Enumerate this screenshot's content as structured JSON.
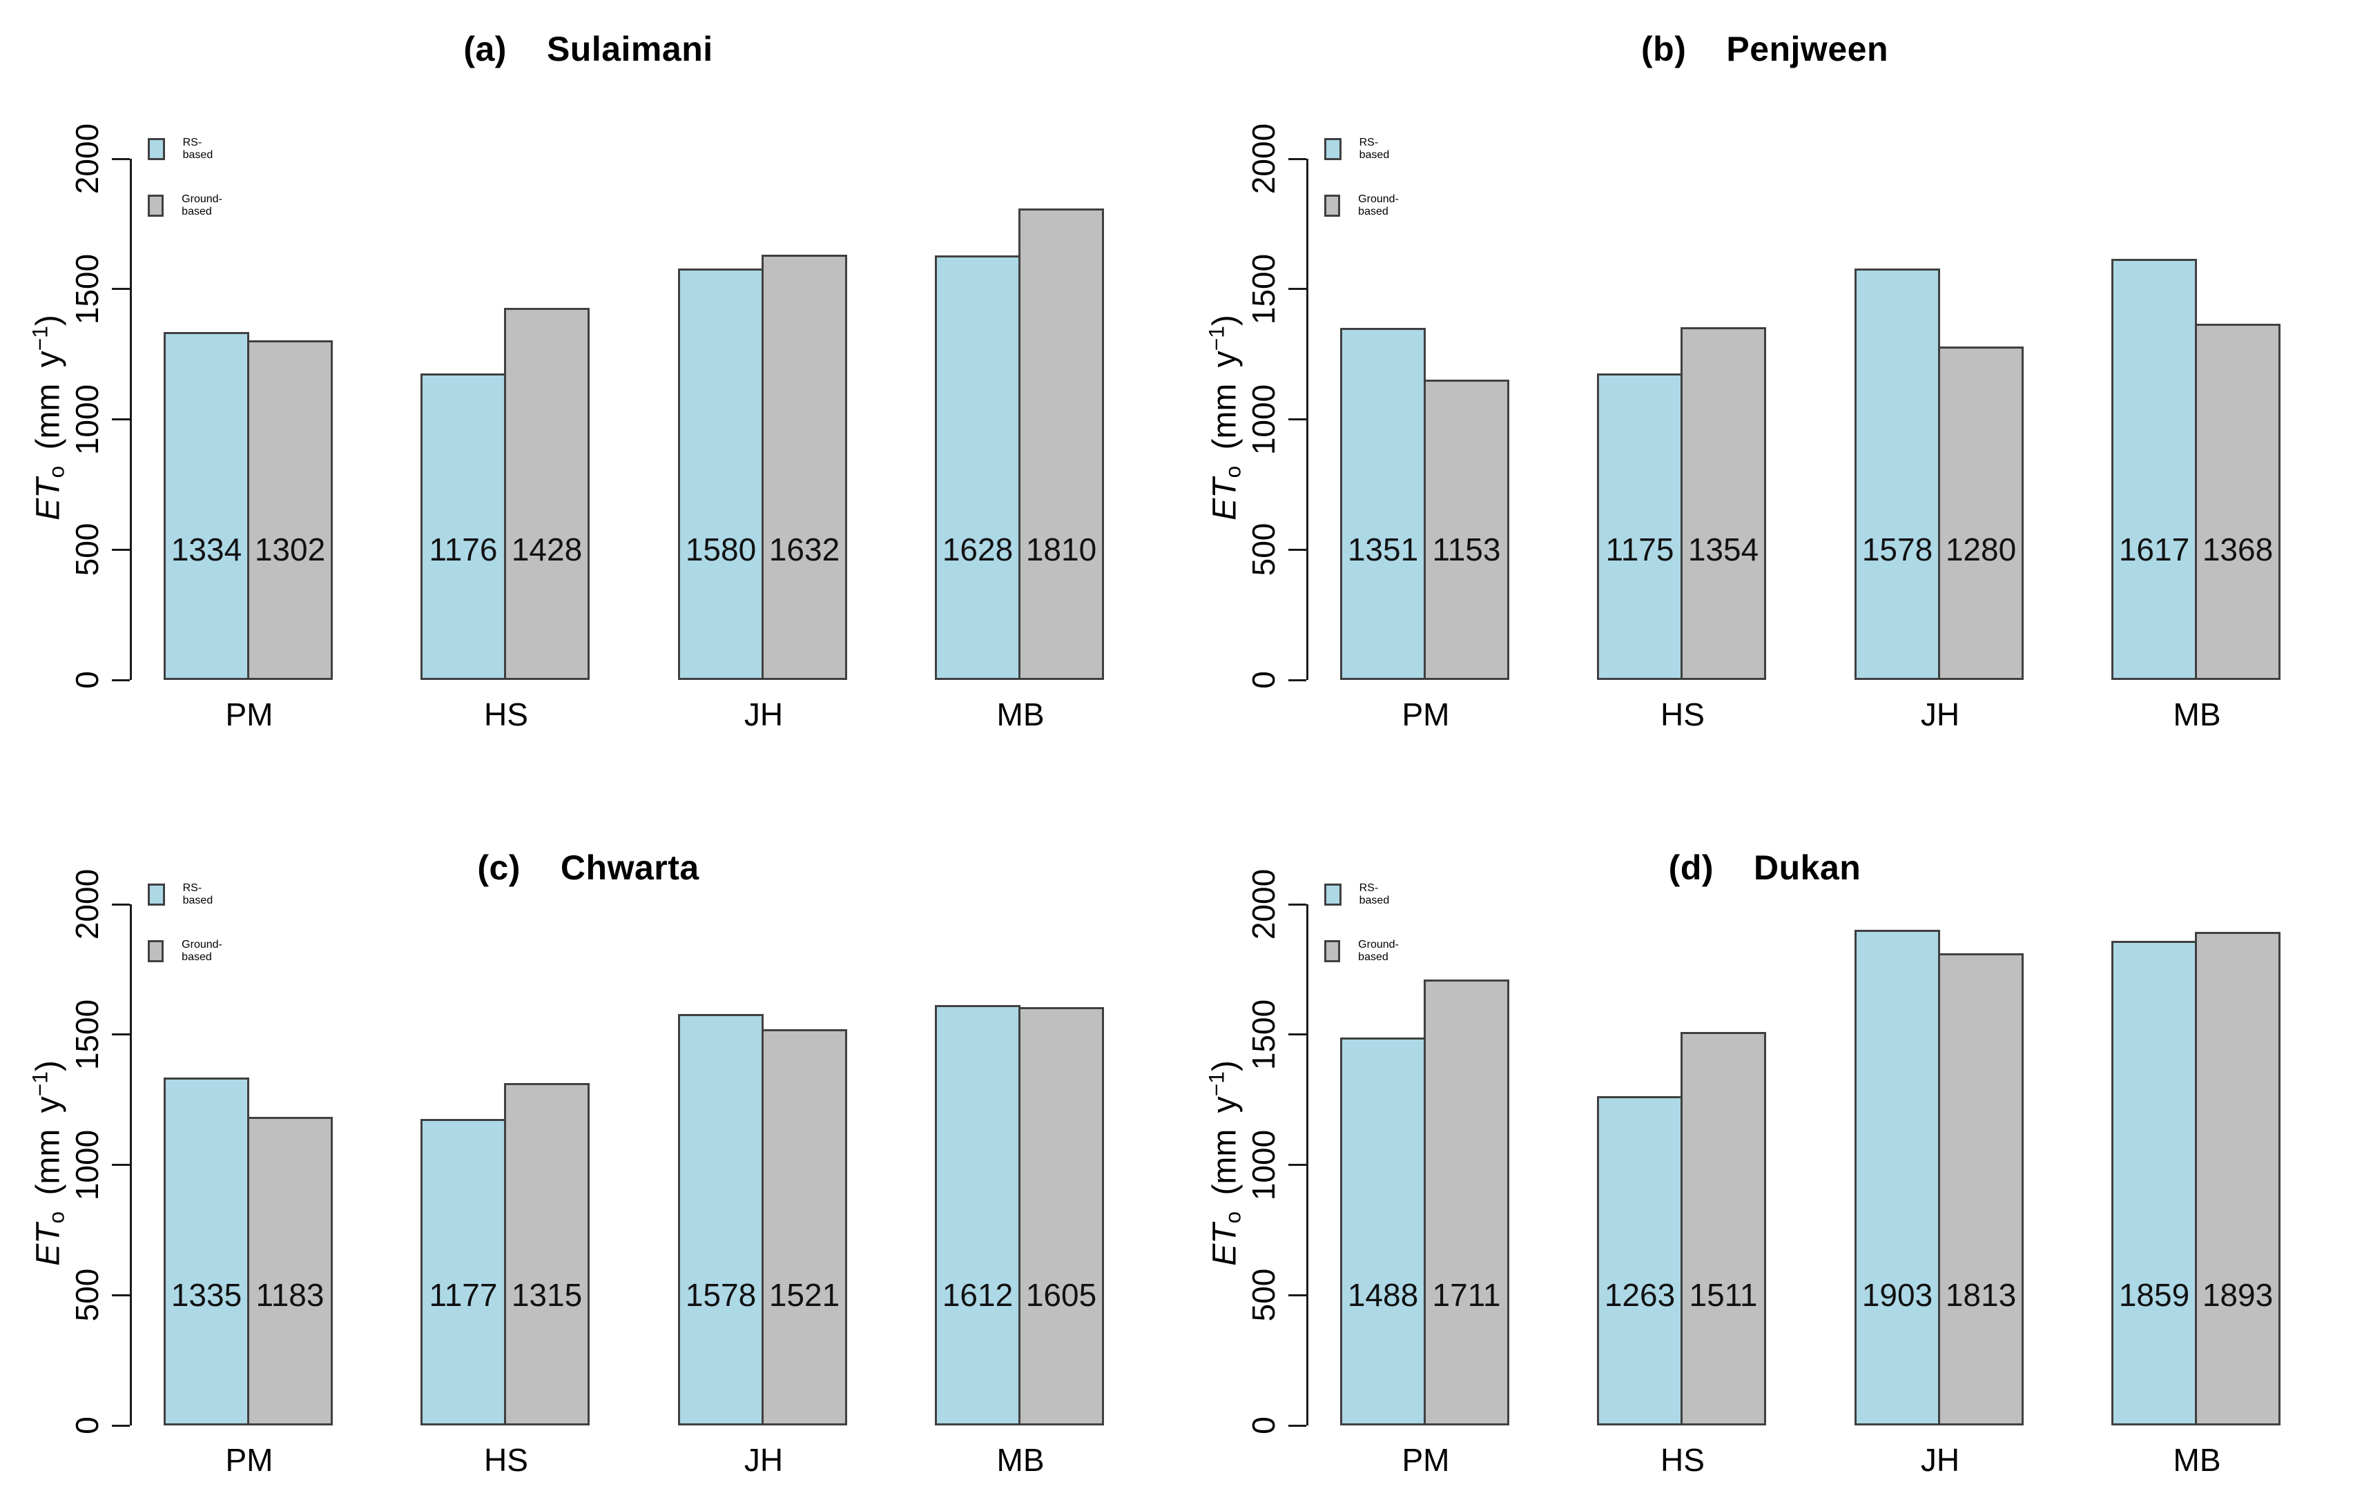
{
  "figure": {
    "colors": {
      "rs_fill": "#ADD8E6",
      "ground_fill": "#BFBFBF",
      "bar_border": "#404040",
      "axis": "#1A1A1A",
      "text": "#000000"
    },
    "legend": {
      "position": "top-left",
      "items": [
        {
          "label": "RS-based",
          "color": "#ADD8E6"
        },
        {
          "label": "Ground-based",
          "color": "#BFBFBF"
        }
      ]
    },
    "y_axis": {
      "ticks": [
        "0",
        "500",
        "1000",
        "1500",
        "2000"
      ],
      "tick_values": [
        0,
        500,
        1000,
        1500,
        2000
      ],
      "label": {
        "var": "ET",
        "sub": "o",
        "rest": " (mm y",
        "exp": "−1",
        "end": ")"
      }
    }
  },
  "chart_data": [
    {
      "type": "bar",
      "panel_label": "(a)",
      "title": "Sulaimani",
      "categories": [
        "PM",
        "HS",
        "JH",
        "MB"
      ],
      "series": [
        {
          "name": "RS-based",
          "values": [
            1334,
            1176,
            1580,
            1628
          ]
        },
        {
          "name": "Ground-based",
          "values": [
            1302,
            1428,
            1632,
            1810
          ]
        }
      ],
      "bar_value_labels": [
        [
          "1334",
          "1302"
        ],
        [
          "1176",
          "1428"
        ],
        [
          "1580",
          "1632"
        ],
        [
          "1628",
          "1810"
        ]
      ],
      "xlabel": "",
      "ylabel": "ETo (mm y-1)",
      "ylim": [
        0,
        2000
      ],
      "grid": false,
      "legend_position": "top-left"
    },
    {
      "type": "bar",
      "panel_label": "(b)",
      "title": "Penjween",
      "categories": [
        "PM",
        "HS",
        "JH",
        "MB"
      ],
      "series": [
        {
          "name": "RS-based",
          "values": [
            1351,
            1175,
            1578,
            1617
          ]
        },
        {
          "name": "Ground-based",
          "values": [
            1153,
            1354,
            1280,
            1368
          ]
        }
      ],
      "bar_value_labels": [
        [
          "1351",
          "1153"
        ],
        [
          "1175",
          "1354"
        ],
        [
          "1578",
          "1280"
        ],
        [
          "1617",
          "1368"
        ]
      ],
      "xlabel": "",
      "ylabel": "ETo (mm y-1)",
      "ylim": [
        0,
        2000
      ],
      "grid": false,
      "legend_position": "top-left"
    },
    {
      "type": "bar",
      "panel_label": "(c)",
      "title": "Chwarta",
      "categories": [
        "PM",
        "HS",
        "JH",
        "MB"
      ],
      "series": [
        {
          "name": "RS-based",
          "values": [
            1335,
            1177,
            1578,
            1612
          ]
        },
        {
          "name": "Ground-based",
          "values": [
            1183,
            1315,
            1521,
            1605
          ]
        }
      ],
      "bar_value_labels": [
        [
          "1335",
          "1183"
        ],
        [
          "1177",
          "1315"
        ],
        [
          "1578",
          "1521"
        ],
        [
          "1612",
          "1605"
        ]
      ],
      "xlabel": "",
      "ylabel": "ETo (mm y-1)",
      "ylim": [
        0,
        2000
      ],
      "grid": false,
      "legend_position": "top-left"
    },
    {
      "type": "bar",
      "panel_label": "(d)",
      "title": "Dukan",
      "categories": [
        "PM",
        "HS",
        "JH",
        "MB"
      ],
      "series": [
        {
          "name": "RS-based",
          "values": [
            1488,
            1263,
            1903,
            1859
          ]
        },
        {
          "name": "Ground-based",
          "values": [
            1711,
            1511,
            1813,
            1893
          ]
        }
      ],
      "bar_value_labels": [
        [
          "1488",
          "1711"
        ],
        [
          "1263",
          "1511"
        ],
        [
          "1903",
          "1813"
        ],
        [
          "1859",
          "1893"
        ]
      ],
      "xlabel": "",
      "ylabel": "ETo (mm y-1)",
      "ylim": [
        0,
        2000
      ],
      "grid": false,
      "legend_position": "top-left"
    }
  ]
}
